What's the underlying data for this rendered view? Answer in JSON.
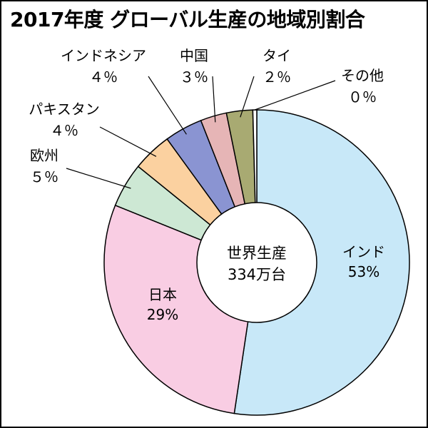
{
  "title": "2017年度 グローバル生産の地域別割合",
  "chart_data": {
    "type": "pie",
    "title": "2017年度 グローバル生産の地域別割合",
    "center_label": [
      "世界生産",
      "334万台"
    ],
    "slices": [
      {
        "name": "インド",
        "display": "53%",
        "value": 53,
        "color": "#c8e8f8"
      },
      {
        "name": "日本",
        "display": "29%",
        "value": 29,
        "color": "#f9cde3"
      },
      {
        "name": "欧州",
        "display": "５％",
        "value": 5,
        "color": "#cde8d4"
      },
      {
        "name": "パキスタン",
        "display": "４％",
        "value": 4,
        "color": "#fbd1a0"
      },
      {
        "name": "インドネシア",
        "display": "４％",
        "value": 4,
        "color": "#8a94d2"
      },
      {
        "name": "中国",
        "display": "３％",
        "value": 3,
        "color": "#e6b5b6"
      },
      {
        "name": "タイ",
        "display": "２％",
        "value": 2,
        "color": "#a8aa72"
      },
      {
        "name": "その他",
        "display": "０％",
        "value": 0,
        "color": "#ffffff"
      }
    ]
  }
}
